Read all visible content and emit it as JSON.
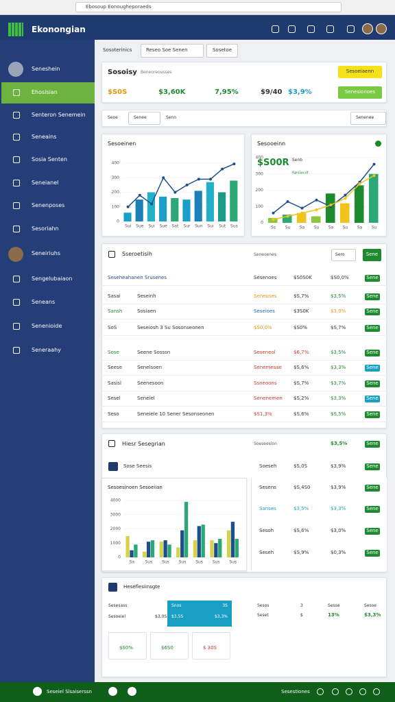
{
  "browser": {
    "url": "Ebosoup Eonougheporaeds"
  },
  "header": {
    "title": "Ekonongian"
  },
  "sidebar": {
    "profile": "Seneshein",
    "items": [
      "Ehosisian",
      "Senteron Senemein",
      "Seneains",
      "Sosia Senten",
      "Seneianel",
      "Senenposes",
      "Sesoriahn",
      "Seneiriuhs",
      "Sengelubaiaon",
      "Seneans",
      "Senenioide",
      "Seneraahy"
    ]
  },
  "toolbar": {
    "label": "Sosoterinics",
    "dropdown": "Reseo Soe Senen",
    "button": "Sosetoe"
  },
  "summary": {
    "title": "Sosoisy",
    "subtitle": "Beneoreousses",
    "button": "Sesoeiaenn",
    "metrics": [
      {
        "text": "$S0S",
        "color": "#e8940c"
      },
      {
        "text": "$3,60K",
        "color": "#1e8a2e"
      },
      {
        "text": "7,95%",
        "color": "#1e8a2e"
      },
      {
        "text": "$9/40",
        "color": "#333333"
      },
      {
        "text": "$3,9%",
        "color": "#1a9fc4"
      }
    ],
    "action": "Senesionoes"
  },
  "filters": [
    "Seoe",
    "Senee",
    "Senn",
    "Senenee"
  ],
  "revenue_chart": {
    "title": "Sesoeinen",
    "ylim": [
      0,
      400
    ],
    "yticks": [
      0,
      100,
      200,
      300,
      400
    ],
    "categories": [
      "Sui",
      "Sue",
      "Sui",
      "Sue",
      "Sat",
      "Sur",
      "Sun",
      "Sui",
      "Sut",
      "Sus"
    ],
    "series": [
      {
        "kind": "bar",
        "colors": [
          "#1aa0c8",
          "#1b7fb8",
          "#22b0c8",
          "#1aa0c8",
          "#2aa876",
          "#1aa0c8",
          "#1b7fb8",
          "#22b0c8",
          "#1b9a8a",
          "#2aa876"
        ],
        "values": [
          60,
          150,
          200,
          170,
          160,
          150,
          210,
          270,
          200,
          280
        ]
      },
      {
        "kind": "line",
        "color": "#1f4e8c",
        "values": [
          100,
          180,
          120,
          300,
          200,
          250,
          290,
          290,
          360,
          395
        ]
      }
    ]
  },
  "trend_chart": {
    "title": "Sesooeinn",
    "headline": "$S00R",
    "legend": [
      "Senb",
      "Sesieuit"
    ],
    "ylim": [
      0,
      400
    ],
    "yticks": [
      0,
      100,
      200,
      300,
      400
    ],
    "categories": [
      "Ss",
      "Su",
      "Sa",
      "Su",
      "Sa",
      "Su",
      "Sa",
      "Su"
    ],
    "series": [
      {
        "kind": "bar",
        "colors": [
          "#8cc63f",
          "#2aa876",
          "#f0c419",
          "#8cc63f",
          "#1e8a2e",
          "#f0c419",
          "#1e8a2e",
          "#2aa876"
        ],
        "values": [
          30,
          50,
          60,
          40,
          180,
          120,
          230,
          300
        ]
      },
      {
        "kind": "line",
        "color": "#1f4e8c",
        "values": [
          60,
          130,
          90,
          140,
          100,
          170,
          250,
          360
        ]
      },
      {
        "kind": "line",
        "color": "#f0c419",
        "values": [
          20,
          40,
          60,
          80,
          110,
          150,
          240,
          290
        ]
      }
    ]
  },
  "table": {
    "title": "Sseroetisih",
    "subtitle": "Seneoenes",
    "dropdown": "Sero",
    "button": "Sene",
    "rows": [
      {
        "cells": [
          "Seseheahanen Srusenes",
          "Sesenoes",
          "$S0S0K",
          "$S0,0%"
        ],
        "cell_colors": [
          "#1f4e8c",
          "#333333",
          "#333333",
          "#333333"
        ],
        "button": "Sene",
        "button_color": "#1e8a2e"
      },
      {
        "cells": [
          "Sasai",
          "Seseinh",
          "Seneuses",
          "$S,7%",
          "$3,5%"
        ],
        "cell_colors": [
          "#333333",
          "#333333",
          "#e8940c",
          "#333333",
          "#1e8a2e"
        ],
        "button": "Sene",
        "button_color": "#1e8a2e"
      },
      {
        "cells": [
          "Sansh",
          "Sosiaen",
          "Seseioes",
          "$3S0K",
          "$3,0%"
        ],
        "cell_colors": [
          "#1e8a2e",
          "#333333",
          "#1a6fb0",
          "#333333",
          "#e8940c"
        ],
        "button": "Sene",
        "button_color": "#1e8a2e"
      },
      {
        "cells": [
          "SoS",
          "Seseiosh 3 Su Sosonseonen",
          "$S0,0%",
          "$S0%",
          "$S,7%"
        ],
        "cell_colors": [
          "#333333",
          "#333333",
          "#e8940c",
          "#333333",
          "#333333"
        ],
        "button": "Sene",
        "button_color": "#1e8a2e"
      },
      {
        "cells": [
          "Sose",
          "Seene Sosssn",
          "Seseneol",
          "$6,7%",
          "$3,5%"
        ],
        "cell_colors": [
          "#1e8a2e",
          "#333333",
          "#d03a2a",
          "#d03a2a",
          "#1e8a2e"
        ],
        "button": "Sene",
        "button_color": "#1e8a2e"
      },
      {
        "cells": [
          "Seese",
          "Senelsoen",
          "Senemesae",
          "$S,6%",
          "$3,3%"
        ],
        "cell_colors": [
          "#333333",
          "#333333",
          "#d03a2a",
          "#333333",
          "#1e8a2e"
        ],
        "button": "Sene",
        "button_color": "#1a9fc4"
      },
      {
        "cells": [
          "Sasisl",
          "Seenesoon",
          "Ssneoons",
          "$S,7%",
          "$3,7%"
        ],
        "cell_colors": [
          "#333333",
          "#333333",
          "#d03a2a",
          "#333333",
          "#1e8a2e"
        ],
        "button": "Sene",
        "button_color": "#1e8a2e"
      },
      {
        "cells": [
          "Sesel",
          "Seneiel",
          "Senenemen",
          "$S,2%",
          "$3,3%"
        ],
        "cell_colors": [
          "#333333",
          "#333333",
          "#d03a2a",
          "#333333",
          "#1e8a2e"
        ],
        "button": "Sene",
        "button_color": "#1a9fc4"
      },
      {
        "cells": [
          "Seso",
          "Seneiele 10 Sener Sesonseonen",
          "$S1,3%",
          "$S,6%",
          "$S,5%"
        ],
        "cell_colors": [
          "#333333",
          "#333333",
          "#d03a2a",
          "#333333",
          "#1e8a2e"
        ],
        "button": "Sene",
        "button_color": "#1e8a2e"
      }
    ]
  },
  "breakdown": {
    "title": "Hiesr Sesegrian",
    "subtitle": "Soeseesion",
    "value": "$3,5%",
    "button": "Sene",
    "row": [
      "Sose Seesis",
      "Soeseh",
      "$S,0S",
      "$3,9%"
    ],
    "chart": {
      "title": "Sesoesinoen Sesoeiian",
      "ylim": [
        0,
        4000
      ],
      "yticks": [
        0,
        1000,
        2000,
        3000,
        4000
      ],
      "categories": [
        "Sa",
        "Sus",
        "Sus",
        "Sus",
        "Sus",
        "Sus",
        "Sus"
      ],
      "series": [
        {
          "kind": "bar",
          "colors": [
            "#d6d24a"
          ],
          "values": [
            1500,
            400,
            1100,
            700,
            1200,
            1200,
            1900
          ]
        },
        {
          "kind": "bar",
          "colors": [
            "#1f4e8c"
          ],
          "values": [
            500,
            1100,
            1200,
            1900,
            2200,
            1000,
            2500
          ]
        },
        {
          "kind": "bar",
          "colors": [
            "#2aa876"
          ],
          "values": [
            900,
            1200,
            900,
            3900,
            2300,
            1300,
            1300
          ]
        }
      ]
    },
    "list": [
      {
        "cells": [
          "Sesens",
          "$S,4S0",
          "$3,9%"
        ],
        "color": "#333333"
      },
      {
        "cells": [
          "Sanses",
          "$3,5%",
          "$3,3%"
        ],
        "color": "#1a9fc4"
      },
      {
        "cells": [
          "Sesoh",
          "$S,6%",
          "$3,0%"
        ],
        "color": "#333333"
      },
      {
        "cells": [
          "Seseh",
          "$S,9%",
          "$0,3%"
        ],
        "color": "#333333"
      }
    ]
  },
  "forecast": {
    "title": "Heseflesiinsgte",
    "labels": [
      "Sesesass",
      "Sesoeiel"
    ],
    "mid": "$3,0S",
    "highlight": [
      [
        "Snos",
        "3S"
      ],
      [
        "$3,5S",
        "$3,3%"
      ]
    ],
    "head": [
      "Sesos",
      "3",
      "Sesse",
      "Sesoe"
    ],
    "row": [
      "Seset",
      "$",
      "13%",
      "$3,3%"
    ],
    "tiles": [
      "$S0%",
      "$6S0",
      "$ 30S"
    ]
  },
  "footer": {
    "left": "Seseiel Slsaiserssn",
    "right": "Sesestiones"
  }
}
